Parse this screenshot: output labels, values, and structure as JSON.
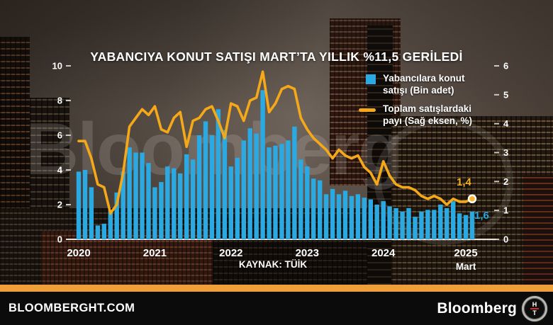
{
  "title": "YABANCIYA KONUT SATIŞI MART’TA YILLIK %11,5 GERİLEDİ",
  "watermark": {
    "text": "Bloomberg"
  },
  "legend": {
    "items": [
      {
        "line1": "Yabancılara konut",
        "line2": "satışı (Bin adet)",
        "color": "#2BA9E2",
        "swatch": "square"
      },
      {
        "line1": "Toplam satışlardaki",
        "line2": "payı (Sağ eksen, %)",
        "color": "#F5A818",
        "swatch": "line"
      }
    ]
  },
  "source": "KAYNAK: TÜİK",
  "footer": {
    "site": "BLOOMBERGHT.COM",
    "brand": "Bloomberg",
    "emblem": {
      "top": "H",
      "bottom": "T"
    }
  },
  "axes": {
    "left_ticks": [
      "0",
      "2",
      "4",
      "6",
      "8",
      "10"
    ],
    "left_tick_values": [
      0,
      2,
      4,
      6,
      8,
      10
    ],
    "right_ticks": [
      "0",
      "1",
      "2",
      "3",
      "4",
      "5",
      "6"
    ],
    "right_tick_values": [
      0,
      1,
      2,
      3,
      4,
      5,
      6
    ],
    "x_ticks": [
      {
        "label": "2020",
        "month": 0
      },
      {
        "label": "2021",
        "month": 12
      },
      {
        "label": "2022",
        "month": 24
      },
      {
        "label": "2023",
        "month": 36
      },
      {
        "label": "2024",
        "month": 48
      },
      {
        "label": "2025",
        "month": 61,
        "sub": "Mart"
      }
    ]
  },
  "chart_data": {
    "type": "bar+line",
    "x_range": "2020-01 .. 2025-03 (monthly)",
    "ylim_left": [
      0,
      10
    ],
    "ylim_right": [
      0,
      6
    ],
    "last_line_label": "1,4",
    "last_bar_label": "1,6",
    "series": [
      {
        "name": "Yabancılara konut satışı (Bin adet)",
        "type": "bar",
        "axis": "left",
        "color": "#2BA9E2",
        "values": [
          3.9,
          4.0,
          3.0,
          0.8,
          0.9,
          1.7,
          2.7,
          3.9,
          5.3,
          5.0,
          5.0,
          4.4,
          3.0,
          3.3,
          4.2,
          4.1,
          3.8,
          4.9,
          4.6,
          6.0,
          6.8,
          6.0,
          7.5,
          6.3,
          4.2,
          4.7,
          5.7,
          6.4,
          6.1,
          8.6,
          5.3,
          5.4,
          5.5,
          5.7,
          6.5,
          4.6,
          4.2,
          3.5,
          3.4,
          2.6,
          2.9,
          2.6,
          2.8,
          2.5,
          2.6,
          2.4,
          2.3,
          2.0,
          2.2,
          1.9,
          1.8,
          1.6,
          1.8,
          1.3,
          1.6,
          1.7,
          1.7,
          2.0,
          1.8,
          2.2,
          1.5,
          1.4,
          1.6
        ]
      },
      {
        "name": "Toplam satışlardaki payı (Sağ eksen, %)",
        "type": "line",
        "axis": "right",
        "color": "#F5A818",
        "values": [
          3.4,
          3.4,
          2.8,
          1.9,
          1.8,
          0.9,
          1.2,
          2.3,
          3.9,
          4.2,
          4.5,
          4.3,
          4.6,
          3.8,
          3.7,
          4.2,
          4.4,
          3.2,
          4.1,
          4.2,
          4.5,
          4.6,
          4.1,
          3.5,
          4.7,
          4.6,
          4.1,
          4.8,
          4.9,
          5.8,
          4.4,
          4.7,
          5.2,
          5.3,
          5.2,
          4.2,
          3.8,
          3.5,
          3.3,
          3.1,
          2.8,
          3.1,
          2.9,
          2.8,
          2.9,
          2.5,
          2.3,
          1.9,
          2.7,
          2.2,
          1.9,
          1.8,
          1.8,
          1.7,
          1.5,
          1.4,
          1.5,
          1.4,
          1.2,
          1.4,
          1.3,
          1.3,
          1.4
        ]
      }
    ]
  }
}
